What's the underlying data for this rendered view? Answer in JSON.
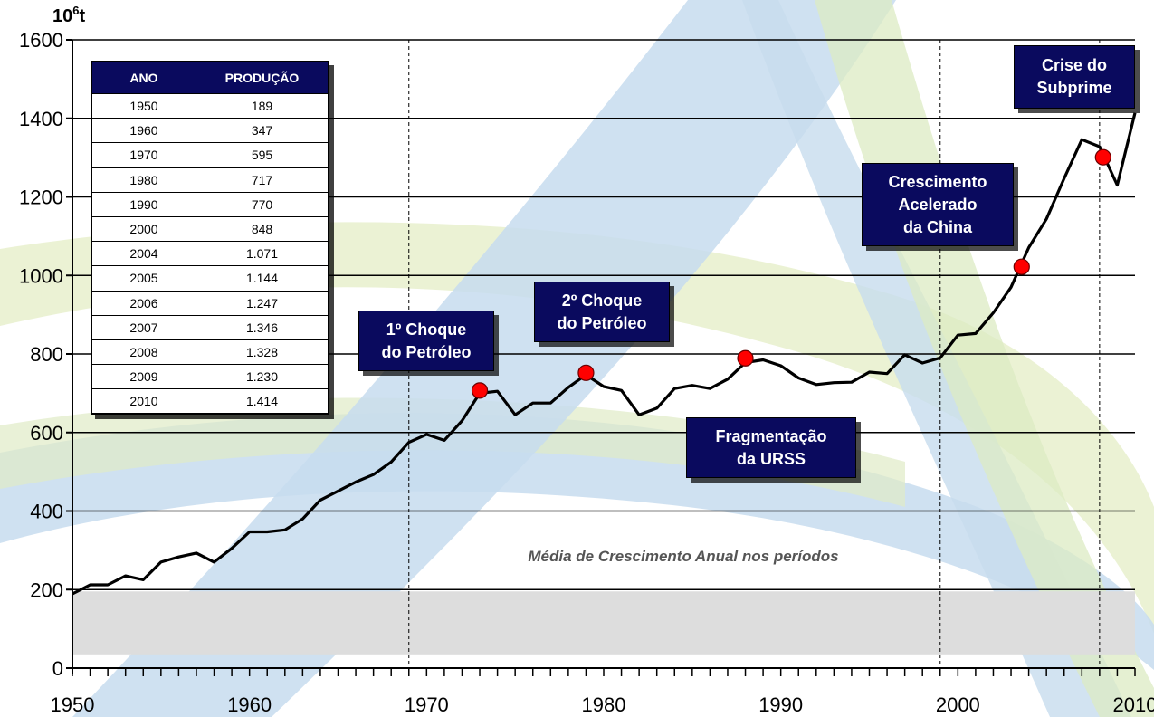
{
  "chart_data": {
    "type": "line",
    "unit_label_base": "10",
    "unit_label_sup": "6",
    "unit_label_suffix": "t",
    "xlim": [
      1950,
      2010
    ],
    "ylim": [
      0,
      1600
    ],
    "y_ticks": [
      0,
      200,
      400,
      600,
      800,
      1000,
      1200,
      1400,
      1600
    ],
    "x_ticks": [
      1950,
      1960,
      1970,
      1980,
      1990,
      2000,
      2010
    ],
    "grid": "horizontal",
    "vertical_dividers": [
      1969,
      1999,
      2008
    ],
    "series": [
      {
        "color": "#000000",
        "x": [
          1950,
          1951,
          1952,
          1953,
          1954,
          1955,
          1956,
          1957,
          1958,
          1959,
          1960,
          1961,
          1962,
          1963,
          1964,
          1965,
          1966,
          1967,
          1968,
          1969,
          1970,
          1971,
          1972,
          1973,
          1974,
          1975,
          1976,
          1977,
          1978,
          1979,
          1980,
          1981,
          1982,
          1983,
          1984,
          1985,
          1986,
          1987,
          1988,
          1989,
          1990,
          1991,
          1992,
          1993,
          1994,
          1995,
          1996,
          1997,
          1998,
          1999,
          2000,
          2001,
          2002,
          2003,
          2004,
          2005,
          2006,
          2007,
          2008,
          2009,
          2010
        ],
        "y": [
          189,
          212,
          212,
          235,
          225,
          270,
          283,
          293,
          270,
          305,
          347,
          347,
          352,
          380,
          428,
          451,
          474,
          493,
          525,
          575,
          595,
          580,
          630,
          700,
          705,
          645,
          675,
          675,
          715,
          747,
          717,
          707,
          645,
          662,
          712,
          720,
          712,
          736,
          778,
          785,
          770,
          739,
          722,
          727,
          728,
          754,
          750,
          798,
          777,
          790,
          848,
          852,
          905,
          970,
          1071,
          1144,
          1247,
          1346,
          1328,
          1230,
          1414
        ]
      }
    ],
    "markers": [
      {
        "x": 1973,
        "y": 707
      },
      {
        "x": 1979,
        "y": 752
      },
      {
        "x": 1988,
        "y": 789
      },
      {
        "x": 2003.6,
        "y": 1022
      },
      {
        "x": 2008.2,
        "y": 1301
      }
    ],
    "annotations": [
      {
        "lines": [
          "1º Choque",
          "do Petróleo"
        ]
      },
      {
        "lines": [
          "2º Choque",
          "do Petróleo"
        ]
      },
      {
        "lines": [
          "Fragmentação",
          "da URSS"
        ]
      },
      {
        "lines": [
          "Crescimento",
          "Acelerado",
          "da China"
        ]
      },
      {
        "lines": [
          "Crise do",
          "Subprime"
        ]
      }
    ],
    "note": "Média de Crescimento Anual nos períodos",
    "table": {
      "headers": [
        "ANO",
        "PRODUÇÃO"
      ],
      "rows": [
        [
          "1950",
          "189"
        ],
        [
          "1960",
          "347"
        ],
        [
          "1970",
          "595"
        ],
        [
          "1980",
          "717"
        ],
        [
          "1990",
          "770"
        ],
        [
          "2000",
          "848"
        ],
        [
          "2004",
          "1.071"
        ],
        [
          "2005",
          "1.144"
        ],
        [
          "2006",
          "1.247"
        ],
        [
          "2007",
          "1.346"
        ],
        [
          "2008",
          "1.328"
        ],
        [
          "2009",
          "1.230"
        ],
        [
          "2010",
          "1.414"
        ]
      ]
    }
  }
}
